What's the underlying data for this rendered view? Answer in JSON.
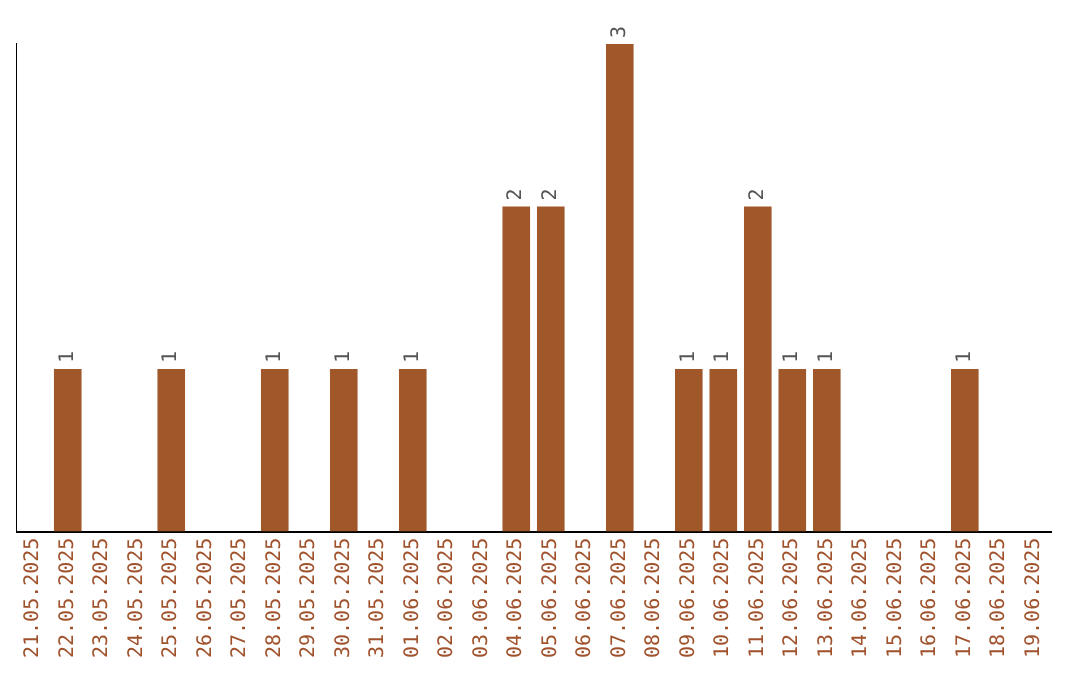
{
  "chart_data": {
    "type": "bar",
    "categories": [
      "21.05.2025",
      "22.05.2025",
      "23.05.2025",
      "24.05.2025",
      "25.05.2025",
      "26.05.2025",
      "27.05.2025",
      "28.05.2025",
      "29.05.2025",
      "30.05.2025",
      "31.05.2025",
      "01.06.2025",
      "02.06.2025",
      "03.06.2025",
      "04.06.2025",
      "05.06.2025",
      "06.06.2025",
      "07.06.2025",
      "08.06.2025",
      "09.06.2025",
      "10.06.2025",
      "11.06.2025",
      "12.06.2025",
      "13.06.2025",
      "14.06.2025",
      "15.06.2025",
      "16.06.2025",
      "17.06.2025",
      "18.06.2025",
      "19.06.2025"
    ],
    "values": [
      0,
      1,
      0,
      0,
      1,
      0,
      0,
      1,
      0,
      1,
      0,
      1,
      0,
      0,
      2,
      2,
      0,
      3,
      0,
      1,
      1,
      2,
      1,
      1,
      0,
      0,
      0,
      1,
      0,
      0
    ],
    "value_labels": [
      null,
      "1",
      null,
      null,
      "1",
      null,
      null,
      "1",
      null,
      "1",
      null,
      "1",
      null,
      null,
      "2",
      "2",
      null,
      "3",
      null,
      "1",
      "1",
      "2",
      "1",
      "1",
      null,
      null,
      null,
      "1",
      null,
      null
    ],
    "color": "#a0572a",
    "ylim": [
      0,
      3
    ],
    "tick_labels": "x",
    "grid": false,
    "legend": false
  }
}
